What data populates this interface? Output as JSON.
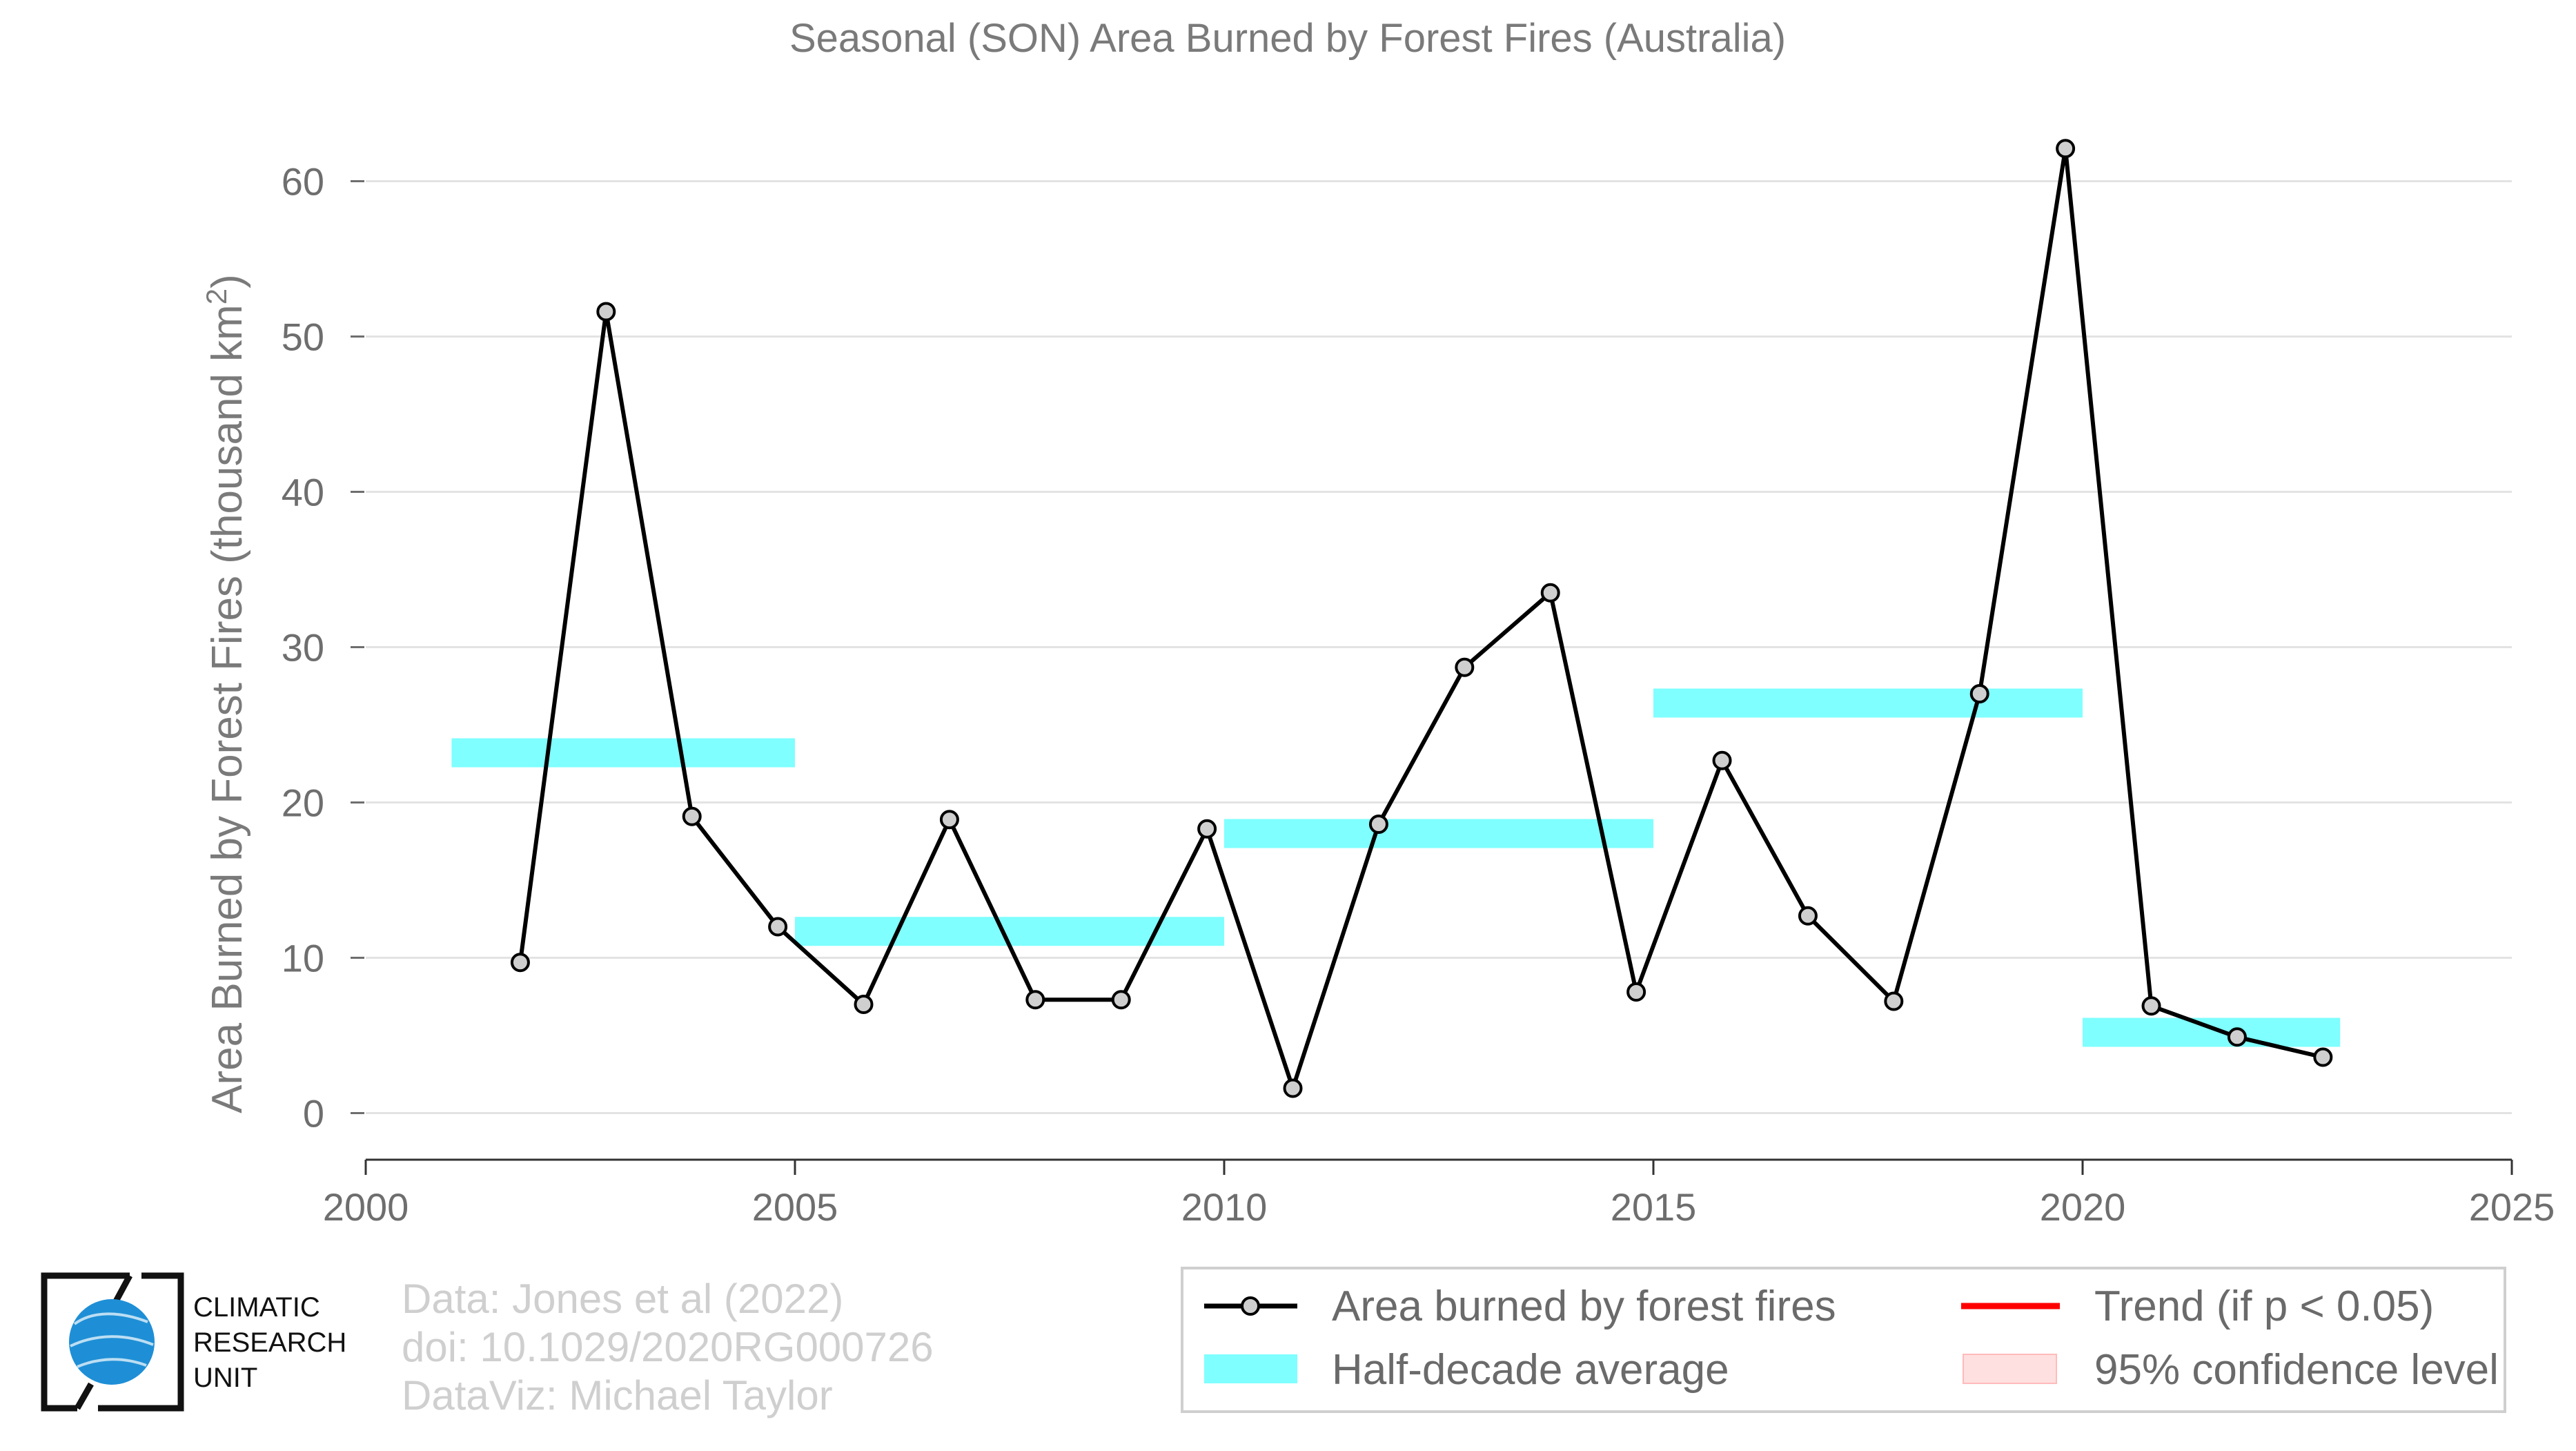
{
  "chart_data": {
    "type": "line",
    "title": "Seasonal (SON) Area Burned by Forest Fires (Australia)",
    "ylabel": "Area Burned by Forest Fires (thousand km²)",
    "xlabel": "",
    "xlim": [
      2000,
      2025
    ],
    "ylim": [
      -3,
      65
    ],
    "x_ticks": [
      "2000",
      "2005",
      "2010",
      "2015",
      "2020",
      "2025"
    ],
    "y_ticks": [
      "0",
      "10",
      "20",
      "30",
      "40",
      "50",
      "60"
    ],
    "grid": "horizontal",
    "series": [
      {
        "name": "Area burned by forest fires",
        "color": "#000000",
        "x": [
          2001.8,
          2002.8,
          2003.8,
          2004.8,
          2005.8,
          2006.8,
          2007.8,
          2008.8,
          2009.8,
          2010.8,
          2011.8,
          2012.8,
          2013.8,
          2014.8,
          2015.8,
          2016.8,
          2017.8,
          2018.8,
          2019.8,
          2020.8,
          2021.8,
          2022.8
        ],
        "y": [
          9.7,
          51.6,
          19.1,
          12.0,
          7.0,
          18.9,
          7.3,
          7.3,
          18.3,
          1.6,
          18.6,
          28.7,
          33.5,
          7.8,
          22.7,
          12.7,
          7.2,
          27.0,
          62.1,
          6.9,
          4.9,
          3.6
        ]
      }
    ],
    "half_decade_average": {
      "name": "Half-decade average",
      "color": "#00ffff",
      "segments": [
        {
          "x0": 2001,
          "x1": 2005,
          "y": 23.2
        },
        {
          "x0": 2005,
          "x1": 2010,
          "y": 11.7
        },
        {
          "x0": 2010,
          "x1": 2015,
          "y": 18.0
        },
        {
          "x0": 2015,
          "x1": 2020,
          "y": 26.4
        },
        {
          "x0": 2020,
          "x1": 2023,
          "y": 5.2
        }
      ]
    },
    "legend": {
      "placement": "bottom-right",
      "entries": [
        {
          "label": "Area burned by forest fires",
          "kind": "line-marker",
          "color": "#000000"
        },
        {
          "label": "Trend (if p < 0.05)",
          "kind": "line",
          "color": "#ff0000"
        },
        {
          "label": "Half-decade average",
          "kind": "band",
          "color": "#00ffff"
        },
        {
          "label": "95% confidence level",
          "kind": "band",
          "color": "#ffcccc"
        }
      ]
    }
  },
  "credits": {
    "line1": "Data: Jones et al (2022)",
    "line2": "doi: 10.1029/2020RG000726",
    "line3": "DataViz: Michael Taylor"
  },
  "logo": {
    "line1": "CLIMATIC",
    "line2": "RESEARCH",
    "line3": "UNIT",
    "color": "#1e8fd6"
  }
}
